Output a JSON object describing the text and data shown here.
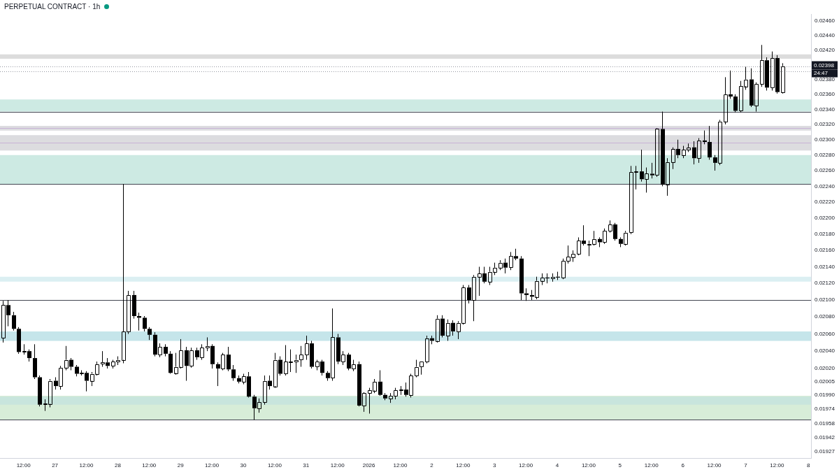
{
  "chart_data": {
    "type": "candlestick",
    "title": "PERPETUAL CONTRACT · 1h",
    "color": "#000000",
    "log": true,
    "grid": false,
    "xlim": [
      "2025-12-26T03:00",
      "2026-01-08T01:00"
    ],
    "xticks": [
      {
        "value": "2025-12-26T12:00",
        "label": "12:00"
      },
      {
        "value": "2025-12-27",
        "label": "27"
      },
      {
        "value": "2025-12-27T12:00",
        "label": "12:00"
      },
      {
        "value": "2025-12-28",
        "label": "28"
      },
      {
        "value": "2025-12-28T12:00",
        "label": "12:00"
      },
      {
        "value": "2025-12-29",
        "label": "29"
      },
      {
        "value": "2025-12-29T12:00",
        "label": "12:00"
      },
      {
        "value": "2025-12-30",
        "label": "30"
      },
      {
        "value": "2025-12-30T12:00",
        "label": "12:00"
      },
      {
        "value": "2025-12-31",
        "label": "31"
      },
      {
        "value": "2025-12-31T12:00",
        "label": "12:00"
      },
      {
        "value": "2026-01-01",
        "label": "2026"
      },
      {
        "value": "2026-01-01T12:00",
        "label": "12:00"
      },
      {
        "value": "2026-01-02",
        "label": "2"
      },
      {
        "value": "2026-01-02T12:00",
        "label": "12:00"
      },
      {
        "value": "2026-01-03",
        "label": "3"
      },
      {
        "value": "2026-01-03T12:00",
        "label": "12:00"
      },
      {
        "value": "2026-01-04",
        "label": "4"
      },
      {
        "value": "2026-01-04T12:00",
        "label": "12:00"
      },
      {
        "value": "2026-01-05",
        "label": "5"
      },
      {
        "value": "2026-01-05T12:00",
        "label": "12:00"
      },
      {
        "value": "2026-01-06",
        "label": "6"
      },
      {
        "value": "2026-01-06T12:00",
        "label": "12:00"
      },
      {
        "value": "2026-01-07",
        "label": "7"
      },
      {
        "value": "2026-01-07T12:00",
        "label": "12:00"
      },
      {
        "value": "2026-01-08",
        "label": "8"
      }
    ],
    "ylim": [
      0.0192,
      0.0247
    ],
    "yticks": [
      0.01927,
      0.01942,
      0.01958,
      0.01974,
      {
        "value": 0.0199,
        "label": "0.01990"
      },
      0.02005,
      {
        "value": 0.0202,
        "label": "0.02020"
      },
      {
        "value": 0.0204,
        "label": "0.02040"
      },
      {
        "value": 0.0206,
        "label": "0.02060"
      },
      {
        "value": 0.0208,
        "label": "0.02080"
      },
      {
        "value": 0.021,
        "label": "0.02100"
      },
      {
        "value": 0.0212,
        "label": "0.02120"
      },
      {
        "value": 0.0214,
        "label": "0.02140"
      },
      {
        "value": 0.0216,
        "label": "0.02160"
      },
      {
        "value": 0.0218,
        "label": "0.02180"
      },
      {
        "value": 0.022,
        "label": "0.02200"
      },
      {
        "value": 0.0222,
        "label": "0.02220"
      },
      {
        "value": 0.0224,
        "label": "0.02240"
      },
      {
        "value": 0.0226,
        "label": "0.02260"
      },
      {
        "value": 0.0228,
        "label": "0.02280"
      },
      {
        "value": 0.023,
        "label": "0.02300"
      },
      {
        "value": 0.0232,
        "label": "0.02320"
      },
      {
        "value": 0.0234,
        "label": "0.02340"
      },
      {
        "value": 0.0236,
        "label": "0.02360"
      },
      {
        "value": 0.0238,
        "label": "0.02380"
      },
      {
        "value": 0.0242,
        "label": "0.02420"
      },
      {
        "value": 0.0244,
        "label": "0.02440"
      },
      {
        "value": 0.0246,
        "label": "0.02460"
      }
    ],
    "bands": [
      {
        "axis": "y",
        "from": 0.02408,
        "to": 0.02414,
        "color": "#dcdcdc"
      },
      {
        "axis": "y",
        "from": 0.02337,
        "to": 0.02353,
        "color": "#cdeae3"
      },
      {
        "axis": "y",
        "from": 0.02312,
        "to": 0.02318,
        "color": "#dcdcdf"
      },
      {
        "axis": "y",
        "from": 0.02286,
        "to": 0.02306,
        "color": "#dcdcdf"
      },
      {
        "axis": "y",
        "from": 0.02243,
        "to": 0.0228,
        "color": "#cdeae3"
      },
      {
        "axis": "y",
        "from": 0.02122,
        "to": 0.02128,
        "color": "#dbeff2"
      },
      {
        "axis": "y",
        "from": 0.02052,
        "to": 0.02063,
        "color": "#c5e5ea"
      },
      {
        "axis": "y",
        "from": 0.01962,
        "to": 0.01989,
        "color": "#d7edd8"
      },
      {
        "axis": "y",
        "from": 0.01979,
        "to": 0.01988,
        "color": "#c8e5dd"
      }
    ],
    "ref_lines": [
      {
        "axis": "y",
        "value": 0.02337,
        "color": "#434651"
      },
      {
        "axis": "y",
        "value": 0.02243,
        "color": "#434651"
      },
      {
        "axis": "y",
        "value": 0.021,
        "color": "#434651"
      },
      {
        "axis": "y",
        "value": 0.01962,
        "color": "#434651"
      },
      {
        "axis": "y",
        "value": 0.02315,
        "color": "#c7b2d6"
      },
      {
        "axis": "y",
        "value": 0.02296,
        "color": "#c7b2d6"
      },
      {
        "axis": "y",
        "value": 0.02391,
        "color": "#9598a1",
        "line_style": "dotted"
      },
      {
        "axis": "y",
        "value": 0.02398,
        "label": "0.02398",
        "color": "#9598a1",
        "line_style": "dotted"
      }
    ],
    "annotations": [
      "24:47"
    ],
    "x": [
      "2025-12-26T04:00",
      "2025-12-26T06:00",
      "2025-12-26T08:00",
      "2025-12-26T10:00",
      "2025-12-26T12:00",
      "2025-12-26T14:00",
      "2025-12-26T16:00",
      "2025-12-26T18:00",
      "2025-12-26T20:00",
      "2025-12-26T22:00",
      "2025-12-27T00:00",
      "2025-12-27T02:00",
      "2025-12-27T04:00",
      "2025-12-27T06:00",
      "2025-12-27T08:00",
      "2025-12-27T10:00",
      "2025-12-27T12:00",
      "2025-12-27T14:00",
      "2025-12-27T16:00",
      "2025-12-27T18:00",
      "2025-12-27T20:00",
      "2025-12-27T22:00",
      "2025-12-28T00:00",
      "2025-12-28T02:00",
      "2025-12-28T04:00",
      "2025-12-28T06:00",
      "2025-12-28T08:00",
      "2025-12-28T10:00",
      "2025-12-28T12:00",
      "2025-12-28T14:00",
      "2025-12-28T16:00",
      "2025-12-28T18:00",
      "2025-12-28T20:00",
      "2025-12-28T22:00",
      "2025-12-29T00:00",
      "2025-12-29T02:00",
      "2025-12-29T04:00",
      "2025-12-29T06:00",
      "2025-12-29T08:00",
      "2025-12-29T10:00",
      "2025-12-29T12:00",
      "2025-12-29T14:00",
      "2025-12-29T16:00",
      "2025-12-29T18:00",
      "2025-12-29T20:00",
      "2025-12-29T22:00",
      "2025-12-30T00:00",
      "2025-12-30T02:00",
      "2025-12-30T04:00",
      "2025-12-30T06:00",
      "2025-12-30T08:00",
      "2025-12-30T10:00",
      "2025-12-30T12:00",
      "2025-12-30T14:00",
      "2025-12-30T16:00",
      "2025-12-30T18:00",
      "2025-12-30T20:00",
      "2025-12-30T22:00",
      "2025-12-31T00:00",
      "2025-12-31T02:00",
      "2025-12-31T04:00",
      "2025-12-31T06:00",
      "2025-12-31T08:00",
      "2025-12-31T10:00",
      "2025-12-31T12:00",
      "2025-12-31T14:00",
      "2025-12-31T16:00",
      "2025-12-31T18:00",
      "2025-12-31T20:00",
      "2025-12-31T22:00",
      "2026-01-01T00:00",
      "2026-01-01T02:00",
      "2026-01-01T04:00",
      "2026-01-01T06:00",
      "2026-01-01T08:00",
      "2026-01-01T10:00",
      "2026-01-01T12:00",
      "2026-01-01T14:00",
      "2026-01-01T16:00",
      "2026-01-01T18:00",
      "2026-01-01T20:00",
      "2026-01-01T22:00",
      "2026-01-02T00:00",
      "2026-01-02T02:00",
      "2026-01-02T04:00",
      "2026-01-02T06:00",
      "2026-01-02T08:00",
      "2026-01-02T10:00",
      "2026-01-02T12:00",
      "2026-01-02T14:00",
      "2026-01-02T16:00",
      "2026-01-02T18:00",
      "2026-01-02T20:00",
      "2026-01-02T22:00",
      "2026-01-03T00:00",
      "2026-01-03T02:00",
      "2026-01-03T04:00",
      "2026-01-03T06:00",
      "2026-01-03T08:00",
      "2026-01-03T10:00",
      "2026-01-03T12:00",
      "2026-01-03T14:00",
      "2026-01-03T16:00",
      "2026-01-03T18:00",
      "2026-01-03T20:00",
      "2026-01-03T22:00",
      "2026-01-04T00:00",
      "2026-01-04T02:00",
      "2026-01-04T04:00",
      "2026-01-04T06:00",
      "2026-01-04T08:00",
      "2026-01-04T10:00",
      "2026-01-04T12:00",
      "2026-01-04T14:00",
      "2026-01-04T16:00",
      "2026-01-04T18:00",
      "2026-01-04T20:00",
      "2026-01-04T22:00",
      "2026-01-05T00:00",
      "2026-01-05T02:00",
      "2026-01-05T04:00",
      "2026-01-05T06:00",
      "2026-01-05T08:00",
      "2026-01-05T10:00",
      "2026-01-05T12:00",
      "2026-01-05T14:00",
      "2026-01-05T16:00",
      "2026-01-05T18:00",
      "2026-01-05T20:00",
      "2026-01-05T22:00",
      "2026-01-06T00:00",
      "2026-01-06T02:00",
      "2026-01-06T04:00",
      "2026-01-06T06:00",
      "2026-01-06T08:00",
      "2026-01-06T10:00",
      "2026-01-06T12:00",
      "2026-01-06T14:00",
      "2026-01-06T16:00",
      "2026-01-06T18:00",
      "2026-01-06T20:00",
      "2026-01-06T22:00",
      "2026-01-07T00:00",
      "2026-01-07T02:00",
      "2026-01-07T04:00",
      "2026-01-07T06:00",
      "2026-01-07T08:00",
      "2026-01-07T10:00",
      "2026-01-07T12:00",
      "2026-01-07T14:00"
    ],
    "ohlc": [
      [
        0.02055,
        0.02099,
        0.0205,
        0.02094
      ],
      [
        0.02094,
        0.021,
        0.02069,
        0.02082
      ],
      [
        0.02082,
        0.02086,
        0.02064,
        0.02066
      ],
      [
        0.02066,
        0.02068,
        0.02037,
        0.02039
      ],
      [
        0.02039,
        0.02048,
        0.02036,
        0.0204
      ],
      [
        0.0204,
        0.02042,
        0.02028,
        0.02032
      ],
      [
        0.02032,
        0.02048,
        0.02008,
        0.0201
      ],
      [
        0.0201,
        0.02012,
        0.01977,
        0.01979
      ],
      [
        0.01979,
        0.01985,
        0.01972,
        0.0198
      ],
      [
        0.0198,
        0.02008,
        0.01976,
        0.02006
      ],
      [
        0.02006,
        0.0201,
        0.01996,
        0.02
      ],
      [
        0.02,
        0.02023,
        0.01996,
        0.02021
      ],
      [
        0.02021,
        0.02046,
        0.02018,
        0.0203
      ],
      [
        0.0203,
        0.02032,
        0.02018,
        0.02022
      ],
      [
        0.02022,
        0.02024,
        0.02011,
        0.02014
      ],
      [
        0.02014,
        0.02018,
        0.02012,
        0.02015
      ],
      [
        0.02015,
        0.02017,
        0.01994,
        0.02006
      ],
      [
        0.02006,
        0.02016,
        0.02,
        0.02014
      ],
      [
        0.02014,
        0.02028,
        0.02012,
        0.02025
      ],
      [
        0.02025,
        0.0204,
        0.02022,
        0.02027
      ],
      [
        0.02027,
        0.02032,
        0.0202,
        0.02023
      ],
      [
        0.02023,
        0.0203,
        0.0202,
        0.02028
      ],
      [
        0.02028,
        0.02034,
        0.02024,
        0.0203
      ],
      [
        0.0203,
        0.02243,
        0.02026,
        0.02063
      ],
      [
        0.02063,
        0.02111,
        0.0206,
        0.02106
      ],
      [
        0.02106,
        0.02111,
        0.02078,
        0.02081
      ],
      [
        0.02081,
        0.02085,
        0.02064,
        0.02079
      ],
      [
        0.02079,
        0.02081,
        0.02063,
        0.02066
      ],
      [
        0.02066,
        0.02068,
        0.02053,
        0.02059
      ],
      [
        0.02059,
        0.02062,
        0.02034,
        0.02036
      ],
      [
        0.02036,
        0.02049,
        0.02033,
        0.02045
      ],
      [
        0.02045,
        0.02048,
        0.02034,
        0.02037
      ],
      [
        0.02037,
        0.0204,
        0.02014,
        0.02015
      ],
      [
        0.02015,
        0.02038,
        0.02013,
        0.02022
      ],
      [
        0.02022,
        0.02054,
        0.0202,
        0.02041
      ],
      [
        0.02041,
        0.02045,
        0.02006,
        0.02023
      ],
      [
        0.02023,
        0.02044,
        0.02021,
        0.02041
      ],
      [
        0.02041,
        0.02044,
        0.0203,
        0.02033
      ],
      [
        0.02033,
        0.02048,
        0.0203,
        0.02044
      ],
      [
        0.02044,
        0.02056,
        0.0204,
        0.02046
      ],
      [
        0.02046,
        0.02048,
        0.0202,
        0.02025
      ],
      [
        0.02025,
        0.02027,
        0.02,
        0.0202
      ],
      [
        0.0202,
        0.02038,
        0.02018,
        0.02036
      ],
      [
        0.02036,
        0.02045,
        0.02017,
        0.02019
      ],
      [
        0.02019,
        0.02024,
        0.02006,
        0.02009
      ],
      [
        0.02009,
        0.02012,
        0.02003,
        0.02005
      ],
      [
        0.02005,
        0.02014,
        0.02002,
        0.02011
      ],
      [
        0.02011,
        0.02016,
        0.01987,
        0.01988
      ],
      [
        0.01988,
        0.0199,
        0.01962,
        0.01975
      ],
      [
        0.01975,
        0.01986,
        0.0197,
        0.01982
      ],
      [
        0.01982,
        0.02012,
        0.01979,
        0.02006
      ],
      [
        0.02006,
        0.02012,
        0.01996,
        0.02
      ],
      [
        0.02,
        0.02038,
        0.01998,
        0.0203
      ],
      [
        0.0203,
        0.02034,
        0.02012,
        0.02014
      ],
      [
        0.02014,
        0.02047,
        0.02012,
        0.02028
      ],
      [
        0.02028,
        0.02042,
        0.02016,
        0.02028
      ],
      [
        0.02028,
        0.02036,
        0.02015,
        0.0203
      ],
      [
        0.0203,
        0.02046,
        0.02022,
        0.02036
      ],
      [
        0.02036,
        0.02058,
        0.0203,
        0.02049
      ],
      [
        0.02049,
        0.02052,
        0.0202,
        0.02022
      ],
      [
        0.02022,
        0.0203,
        0.02018,
        0.02028
      ],
      [
        0.02028,
        0.0203,
        0.02012,
        0.02015
      ],
      [
        0.02015,
        0.02017,
        0.02006,
        0.02009
      ],
      [
        0.02009,
        0.0209,
        0.02006,
        0.02056
      ],
      [
        0.02056,
        0.0206,
        0.02025,
        0.02028
      ],
      [
        0.02028,
        0.0204,
        0.02024,
        0.02036
      ],
      [
        0.02036,
        0.02038,
        0.02018,
        0.0202
      ],
      [
        0.0202,
        0.0203,
        0.02017,
        0.02025
      ],
      [
        0.02025,
        0.02028,
        0.01977,
        0.01978
      ],
      [
        0.01978,
        0.01993,
        0.01971,
        0.01992
      ],
      [
        0.01992,
        0.01998,
        0.01969,
        0.01995
      ],
      [
        0.01995,
        0.02008,
        0.01992,
        0.02005
      ],
      [
        0.02005,
        0.02018,
        0.01989,
        0.0199
      ],
      [
        0.0199,
        0.01992,
        0.01984,
        0.01986
      ],
      [
        0.01986,
        0.01992,
        0.01981,
        0.01989
      ],
      [
        0.01989,
        0.01998,
        0.01985,
        0.01995
      ],
      [
        0.01995,
        0.02,
        0.0199,
        0.01996
      ],
      [
        0.01996,
        0.02004,
        0.01988,
        0.0199
      ],
      [
        0.0199,
        0.02014,
        0.01987,
        0.02012
      ],
      [
        0.02012,
        0.0203,
        0.0201,
        0.02022
      ],
      [
        0.02022,
        0.02028,
        0.02013,
        0.02028
      ],
      [
        0.02028,
        0.02058,
        0.02026,
        0.02055
      ],
      [
        0.02055,
        0.02058,
        0.02048,
        0.02052
      ],
      [
        0.02052,
        0.02082,
        0.0205,
        0.02078
      ],
      [
        0.02078,
        0.02082,
        0.02056,
        0.02058
      ],
      [
        0.02058,
        0.02077,
        0.02052,
        0.02073
      ],
      [
        0.02073,
        0.02076,
        0.02058,
        0.02063
      ],
      [
        0.02063,
        0.02075,
        0.02054,
        0.02073
      ],
      [
        0.02073,
        0.02118,
        0.02071,
        0.02115
      ],
      [
        0.02115,
        0.02118,
        0.02096,
        0.021
      ],
      [
        0.021,
        0.0213,
        0.02075,
        0.02128
      ],
      [
        0.02128,
        0.0214,
        0.02105,
        0.02132
      ],
      [
        0.02132,
        0.0214,
        0.0212,
        0.02122
      ],
      [
        0.02122,
        0.0214,
        0.02118,
        0.02134
      ],
      [
        0.02134,
        0.02145,
        0.0213,
        0.02139
      ],
      [
        0.02139,
        0.02148,
        0.02136,
        0.02145
      ],
      [
        0.02145,
        0.0215,
        0.02132,
        0.02139
      ],
      [
        0.02139,
        0.02158,
        0.02136,
        0.02153
      ],
      [
        0.02153,
        0.02162,
        0.02148,
        0.0215
      ],
      [
        0.0215,
        0.02153,
        0.021,
        0.02108
      ],
      [
        0.02108,
        0.02114,
        0.02099,
        0.02106
      ],
      [
        0.02106,
        0.02112,
        0.021,
        0.02104
      ],
      [
        0.02104,
        0.02128,
        0.02101,
        0.02123
      ],
      [
        0.02123,
        0.02132,
        0.02118,
        0.02127
      ],
      [
        0.02127,
        0.02132,
        0.0212,
        0.02126
      ],
      [
        0.02126,
        0.02132,
        0.02122,
        0.02128
      ],
      [
        0.02128,
        0.02134,
        0.02124,
        0.02127
      ],
      [
        0.02127,
        0.0215,
        0.02125,
        0.02147
      ],
      [
        0.02147,
        0.02166,
        0.02144,
        0.02152
      ],
      [
        0.02152,
        0.0216,
        0.02146,
        0.02156
      ],
      [
        0.02156,
        0.02176,
        0.02154,
        0.02172
      ],
      [
        0.02172,
        0.02191,
        0.02166,
        0.02168
      ],
      [
        0.02168,
        0.02172,
        0.02153,
        0.02168
      ],
      [
        0.02168,
        0.02184,
        0.02166,
        0.02174
      ],
      [
        0.02174,
        0.02176,
        0.02164,
        0.0217
      ],
      [
        0.0217,
        0.02187,
        0.02168,
        0.02184
      ],
      [
        0.02184,
        0.02197,
        0.02182,
        0.02192
      ],
      [
        0.02192,
        0.02194,
        0.02172,
        0.02174
      ],
      [
        0.02174,
        0.02176,
        0.02164,
        0.02168
      ],
      [
        0.02168,
        0.02184,
        0.02166,
        0.02182
      ],
      [
        0.02182,
        0.02266,
        0.0218,
        0.02258
      ],
      [
        0.02258,
        0.02266,
        0.02236,
        0.02259
      ],
      [
        0.02259,
        0.02287,
        0.02246,
        0.02249
      ],
      [
        0.02249,
        0.02264,
        0.02232,
        0.02256
      ],
      [
        0.02256,
        0.0227,
        0.0225,
        0.02254
      ],
      [
        0.02254,
        0.02315,
        0.02252,
        0.02314
      ],
      [
        0.02314,
        0.02337,
        0.0224,
        0.02242
      ],
      [
        0.02242,
        0.02276,
        0.02228,
        0.02271
      ],
      [
        0.02271,
        0.0229,
        0.02262,
        0.02288
      ],
      [
        0.02288,
        0.023,
        0.02276,
        0.0228
      ],
      [
        0.0228,
        0.02292,
        0.02276,
        0.02287
      ],
      [
        0.02287,
        0.02295,
        0.02284,
        0.0229
      ],
      [
        0.0229,
        0.02298,
        0.02268,
        0.02276
      ],
      [
        0.02276,
        0.02302,
        0.0227,
        0.02299
      ],
      [
        0.02299,
        0.02312,
        0.02294,
        0.02297
      ],
      [
        0.02297,
        0.02318,
        0.02274,
        0.02277
      ],
      [
        0.02277,
        0.0228,
        0.0226,
        0.0227
      ],
      [
        0.0227,
        0.02326,
        0.02267,
        0.02324
      ],
      [
        0.02324,
        0.02383,
        0.0232,
        0.0236
      ],
      [
        0.0236,
        0.02392,
        0.02354,
        0.02357
      ],
      [
        0.02357,
        0.0236,
        0.02336,
        0.02338
      ],
      [
        0.02338,
        0.02378,
        0.02336,
        0.02371
      ],
      [
        0.02371,
        0.02397,
        0.02366,
        0.0238
      ],
      [
        0.0238,
        0.02395,
        0.02343,
        0.02345
      ],
      [
        0.02345,
        0.02376,
        0.02337,
        0.02374
      ],
      [
        0.02374,
        0.02427,
        0.0237,
        0.02406
      ],
      [
        0.02406,
        0.0241,
        0.02365,
        0.02369
      ],
      [
        0.02369,
        0.02418,
        0.02365,
        0.02409
      ],
      [
        0.02409,
        0.02413,
        0.02361,
        0.02363
      ],
      [
        0.02363,
        0.02402,
        0.02361,
        0.02398
      ]
    ]
  }
}
